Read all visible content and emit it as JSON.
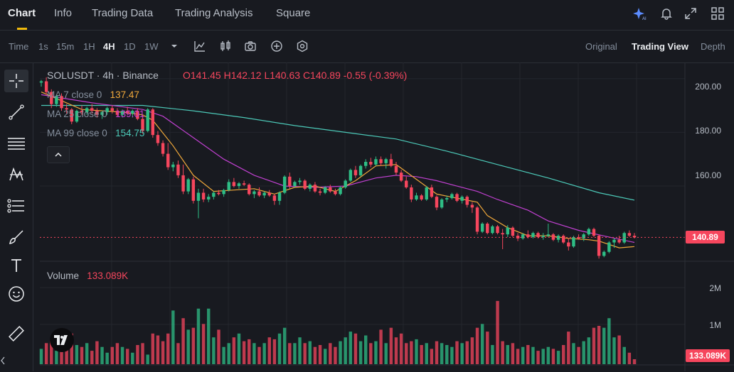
{
  "nav": {
    "tabs": [
      "Chart",
      "Info",
      "Trading Data",
      "Trading Analysis",
      "Square"
    ]
  },
  "toolbar": {
    "time_label": "Time",
    "timeframes": [
      "1s",
      "15m",
      "1H",
      "4H",
      "1D",
      "1W"
    ],
    "active_timeframe": "4H",
    "views": [
      "Original",
      "Trading View",
      "Depth"
    ],
    "active_view": "Trading View"
  },
  "legend": {
    "symbol": "SOLUSDT · 4h · Binance",
    "open": "O141.45",
    "high": "H142.12",
    "low": "L140.63",
    "close": "C140.89",
    "change": "-0.55 (-0.39%)",
    "ma7_label": "MA 7 close 0",
    "ma7_value": "137.47",
    "ma25_label": "MA 25 close 0",
    "ma25_value": "139.01",
    "ma99_label": "MA 99 close 0",
    "ma99_value": "154.75"
  },
  "volume": {
    "label": "Volume",
    "value": "133.089K",
    "tag": "133.089K",
    "ticks": [
      "2M",
      "1M"
    ]
  },
  "price_axis": {
    "ticks": [
      "200.00",
      "180.00",
      "160.00"
    ],
    "current": "140.89"
  },
  "colors": {
    "up": "#2ebd85",
    "down": "#f6465d",
    "ma7": "#f0a83a",
    "ma25": "#c040d0",
    "ma99": "#4cc9b8",
    "accent": "#f0b90b"
  },
  "icons": [
    "ai-sparkle-icon",
    "bell-icon",
    "expand-icon",
    "layout-grid-icon",
    "indicator-icon",
    "candle-type-icon",
    "camera-icon",
    "plus-circle-icon",
    "settings-icon",
    "crosshair-icon",
    "trendline-icon",
    "fib-lines-icon",
    "pattern-icon",
    "measure-icon",
    "brush-icon",
    "text-icon",
    "emoji-icon",
    "ruler-icon",
    "tradingview-logo"
  ],
  "chart_data": {
    "type": "candlestick",
    "ylim": [
      132,
      206
    ],
    "y_ticks": [
      160,
      180,
      200
    ],
    "current_price": 140.89,
    "candles": [
      [
        198.5,
        199.5,
        197.0,
        199.0
      ],
      [
        199.0,
        200.5,
        194.0,
        195.0
      ],
      [
        195.0,
        196.0,
        189.0,
        190.5
      ],
      [
        190.5,
        194.0,
        189.5,
        193.5
      ],
      [
        193.5,
        194.5,
        188.0,
        189.0
      ],
      [
        189.0,
        190.5,
        187.0,
        188.5
      ],
      [
        188.5,
        189.0,
        183.0,
        184.0
      ],
      [
        184.0,
        188.5,
        183.5,
        188.0
      ],
      [
        188.0,
        190.0,
        186.5,
        187.5
      ],
      [
        187.5,
        189.5,
        186.5,
        189.0
      ],
      [
        189.0,
        190.5,
        187.0,
        188.0
      ],
      [
        188.0,
        189.0,
        185.5,
        186.5
      ],
      [
        186.5,
        188.0,
        185.0,
        187.5
      ],
      [
        187.5,
        189.5,
        186.5,
        189.0
      ],
      [
        189.0,
        190.0,
        187.0,
        188.0
      ],
      [
        188.0,
        189.0,
        186.0,
        186.5
      ],
      [
        186.5,
        188.5,
        185.5,
        188.0
      ],
      [
        188.0,
        189.5,
        186.5,
        187.0
      ],
      [
        187.0,
        188.5,
        185.5,
        188.0
      ],
      [
        188.0,
        189.0,
        184.5,
        185.0
      ],
      [
        185.0,
        186.5,
        179.5,
        180.5
      ],
      [
        180.5,
        189.0,
        180.0,
        188.5
      ],
      [
        188.5,
        189.0,
        178.0,
        179.0
      ],
      [
        179.0,
        180.5,
        175.0,
        176.0
      ],
      [
        176.0,
        177.0,
        171.0,
        172.0
      ],
      [
        172.0,
        176.0,
        166.0,
        167.0
      ],
      [
        167.0,
        169.0,
        165.5,
        168.0
      ],
      [
        168.0,
        169.5,
        163.0,
        164.0
      ],
      [
        164.0,
        168.0,
        157.0,
        158.0
      ],
      [
        158.0,
        163.0,
        157.0,
        162.5
      ],
      [
        162.5,
        163.5,
        153.5,
        154.5
      ],
      [
        154.5,
        159.0,
        148.0,
        157.5
      ],
      [
        157.5,
        159.0,
        154.0,
        155.0
      ],
      [
        155.0,
        157.0,
        154.0,
        156.0
      ],
      [
        156.0,
        158.0,
        155.0,
        157.5
      ],
      [
        157.5,
        158.5,
        156.5,
        157.0
      ],
      [
        157.0,
        159.0,
        156.0,
        158.5
      ],
      [
        158.5,
        162.5,
        158.0,
        161.5
      ],
      [
        161.5,
        163.0,
        159.5,
        160.0
      ],
      [
        160.0,
        161.5,
        159.0,
        161.0
      ],
      [
        161.0,
        162.0,
        160.0,
        160.5
      ],
      [
        160.5,
        161.0,
        156.5,
        157.0
      ],
      [
        157.0,
        158.5,
        155.5,
        158.0
      ],
      [
        158.0,
        159.5,
        156.0,
        156.5
      ],
      [
        156.5,
        158.0,
        155.5,
        157.5
      ],
      [
        157.5,
        158.5,
        156.0,
        156.5
      ],
      [
        156.5,
        157.0,
        153.0,
        154.5
      ],
      [
        154.5,
        158.0,
        153.0,
        157.5
      ],
      [
        157.5,
        164.0,
        157.0,
        163.5
      ],
      [
        163.5,
        165.0,
        159.0,
        160.0
      ],
      [
        160.0,
        162.0,
        159.5,
        161.5
      ],
      [
        161.5,
        163.0,
        160.5,
        162.0
      ],
      [
        162.0,
        162.5,
        158.5,
        159.0
      ],
      [
        159.0,
        161.0,
        158.0,
        160.5
      ],
      [
        160.5,
        161.5,
        157.5,
        158.0
      ],
      [
        158.0,
        159.0,
        156.5,
        157.5
      ],
      [
        157.5,
        160.0,
        157.0,
        159.5
      ],
      [
        159.5,
        160.5,
        157.5,
        158.0
      ],
      [
        158.0,
        159.0,
        156.5,
        157.0
      ],
      [
        157.0,
        160.0,
        156.5,
        159.5
      ],
      [
        159.5,
        162.5,
        159.0,
        162.0
      ],
      [
        162.0,
        166.5,
        161.5,
        166.0
      ],
      [
        166.0,
        167.5,
        163.0,
        164.0
      ],
      [
        164.0,
        168.0,
        163.5,
        167.5
      ],
      [
        167.5,
        170.0,
        166.5,
        169.0
      ],
      [
        169.0,
        170.5,
        167.0,
        168.0
      ],
      [
        168.0,
        171.0,
        167.5,
        170.0
      ],
      [
        170.0,
        171.0,
        167.5,
        168.5
      ],
      [
        168.5,
        170.5,
        166.5,
        170.0
      ],
      [
        170.0,
        172.0,
        167.0,
        167.5
      ],
      [
        167.5,
        169.0,
        164.0,
        165.0
      ],
      [
        165.0,
        166.0,
        161.5,
        162.0
      ],
      [
        162.0,
        163.5,
        159.0,
        159.5
      ],
      [
        159.5,
        160.5,
        154.0,
        155.0
      ],
      [
        155.0,
        157.5,
        154.5,
        156.5
      ],
      [
        156.5,
        157.0,
        154.5,
        155.0
      ],
      [
        155.0,
        160.0,
        154.5,
        159.5
      ],
      [
        159.5,
        160.5,
        155.5,
        156.0
      ],
      [
        156.0,
        156.5,
        151.0,
        152.0
      ],
      [
        152.0,
        155.5,
        151.5,
        155.0
      ],
      [
        155.0,
        156.5,
        154.0,
        155.5
      ],
      [
        155.5,
        157.5,
        155.0,
        157.0
      ],
      [
        157.0,
        157.5,
        154.0,
        154.5
      ],
      [
        154.5,
        156.5,
        153.5,
        156.0
      ],
      [
        156.0,
        156.5,
        152.0,
        153.0
      ],
      [
        153.0,
        154.0,
        150.0,
        152.0
      ],
      [
        152.0,
        152.5,
        142.0,
        143.0
      ],
      [
        143.0,
        146.5,
        142.5,
        146.0
      ],
      [
        146.0,
        146.5,
        142.0,
        142.5
      ],
      [
        142.5,
        145.5,
        142.0,
        145.0
      ],
      [
        145.0,
        145.5,
        142.0,
        142.5
      ],
      [
        142.5,
        144.0,
        136.5,
        142.0
      ],
      [
        142.0,
        145.5,
        141.0,
        144.5
      ],
      [
        144.5,
        145.0,
        141.0,
        141.5
      ],
      [
        141.5,
        142.5,
        139.5,
        140.5
      ],
      [
        140.5,
        142.5,
        140.0,
        142.0
      ],
      [
        142.0,
        143.5,
        140.5,
        141.0
      ],
      [
        141.0,
        143.0,
        140.5,
        142.5
      ],
      [
        142.5,
        143.0,
        140.5,
        141.0
      ],
      [
        141.0,
        142.5,
        140.0,
        141.5
      ],
      [
        141.5,
        146.0,
        141.0,
        142.0
      ],
      [
        142.0,
        142.5,
        139.5,
        140.0
      ],
      [
        140.0,
        142.0,
        139.0,
        141.5
      ],
      [
        141.5,
        142.0,
        138.5,
        139.0
      ],
      [
        139.0,
        140.5,
        136.0,
        137.5
      ],
      [
        137.5,
        141.5,
        137.0,
        141.0
      ],
      [
        141.0,
        142.0,
        140.0,
        140.5
      ],
      [
        140.5,
        142.5,
        139.5,
        142.0
      ],
      [
        142.0,
        144.5,
        141.5,
        144.0
      ],
      [
        144.0,
        144.5,
        141.0,
        141.5
      ],
      [
        141.5,
        142.0,
        133.0,
        134.0
      ],
      [
        134.0,
        136.0,
        133.5,
        135.5
      ],
      [
        135.5,
        139.5,
        135.0,
        139.0
      ],
      [
        139.0,
        140.5,
        137.0,
        140.0
      ],
      [
        140.0,
        141.5,
        138.5,
        139.0
      ],
      [
        139.0,
        143.0,
        138.5,
        142.5
      ],
      [
        142.5,
        143.5,
        141.0,
        141.5
      ],
      [
        141.5,
        142.5,
        140.5,
        140.89
      ]
    ],
    "volume_m": [
      0.4,
      0.55,
      0.65,
      0.35,
      0.45,
      0.5,
      0.8,
      0.5,
      0.45,
      0.55,
      0.35,
      0.6,
      0.45,
      0.3,
      0.45,
      0.55,
      0.45,
      0.4,
      0.3,
      0.5,
      0.55,
      0.25,
      0.8,
      0.75,
      0.6,
      0.8,
      1.4,
      0.55,
      1.2,
      0.9,
      0.95,
      1.45,
      1.05,
      1.45,
      0.7,
      0.9,
      0.45,
      0.55,
      0.7,
      0.8,
      0.6,
      0.65,
      0.55,
      0.45,
      0.55,
      0.7,
      0.65,
      0.8,
      0.95,
      0.55,
      0.55,
      0.7,
      0.55,
      0.6,
      0.45,
      0.5,
      0.4,
      0.55,
      0.45,
      0.6,
      0.7,
      0.85,
      0.8,
      0.6,
      0.75,
      0.55,
      0.6,
      0.9,
      0.55,
      0.95,
      0.7,
      0.8,
      0.55,
      0.6,
      0.65,
      0.5,
      0.55,
      0.4,
      0.6,
      0.55,
      0.5,
      0.45,
      0.6,
      0.55,
      0.6,
      0.7,
      0.95,
      1.05,
      0.85,
      0.5,
      1.65,
      0.6,
      0.5,
      0.55,
      0.4,
      0.45,
      0.5,
      0.45,
      0.35,
      0.4,
      0.45,
      0.4,
      0.35,
      0.5,
      0.85,
      0.55,
      0.45,
      0.6,
      0.7,
      0.95,
      1.0,
      0.95,
      1.2,
      0.7,
      0.75,
      0.45,
      0.3,
      0.13
    ],
    "ma7": [
      [
        0,
        195.0
      ],
      [
        8,
        188.5
      ],
      [
        16,
        187.5
      ],
      [
        20,
        186.5
      ],
      [
        22,
        184.5
      ],
      [
        26,
        175.0
      ],
      [
        30,
        164.0
      ],
      [
        34,
        158.0
      ],
      [
        38,
        158.5
      ],
      [
        42,
        159.0
      ],
      [
        46,
        157.0
      ],
      [
        50,
        159.5
      ],
      [
        54,
        160.0
      ],
      [
        58,
        158.0
      ],
      [
        62,
        162.0
      ],
      [
        66,
        167.5
      ],
      [
        70,
        168.0
      ],
      [
        74,
        162.5
      ],
      [
        78,
        157.0
      ],
      [
        82,
        155.5
      ],
      [
        86,
        154.0
      ],
      [
        88,
        149.0
      ],
      [
        92,
        144.5
      ],
      [
        96,
        141.5
      ],
      [
        100,
        141.5
      ],
      [
        104,
        140.5
      ],
      [
        108,
        140.0
      ],
      [
        110,
        139.5
      ],
      [
        114,
        137.0
      ],
      [
        117,
        137.47
      ]
    ],
    "ma25": [
      [
        0,
        194.0
      ],
      [
        10,
        191.0
      ],
      [
        20,
        188.5
      ],
      [
        24,
        186.0
      ],
      [
        30,
        178.0
      ],
      [
        36,
        170.0
      ],
      [
        42,
        164.0
      ],
      [
        48,
        160.0
      ],
      [
        54,
        159.5
      ],
      [
        60,
        160.0
      ],
      [
        66,
        163.0
      ],
      [
        70,
        164.0
      ],
      [
        74,
        163.5
      ],
      [
        78,
        162.0
      ],
      [
        82,
        160.0
      ],
      [
        86,
        158.0
      ],
      [
        90,
        155.0
      ],
      [
        96,
        151.0
      ],
      [
        100,
        147.0
      ],
      [
        106,
        143.5
      ],
      [
        112,
        141.0
      ],
      [
        117,
        139.01
      ]
    ],
    "ma99": [
      [
        0,
        190.0
      ],
      [
        10,
        190.0
      ],
      [
        20,
        190.0
      ],
      [
        30,
        188.0
      ],
      [
        40,
        185.5
      ],
      [
        50,
        182.5
      ],
      [
        60,
        180.0
      ],
      [
        70,
        177.5
      ],
      [
        80,
        173.0
      ],
      [
        90,
        168.0
      ],
      [
        100,
        163.0
      ],
      [
        110,
        157.5
      ],
      [
        117,
        154.75
      ]
    ]
  }
}
